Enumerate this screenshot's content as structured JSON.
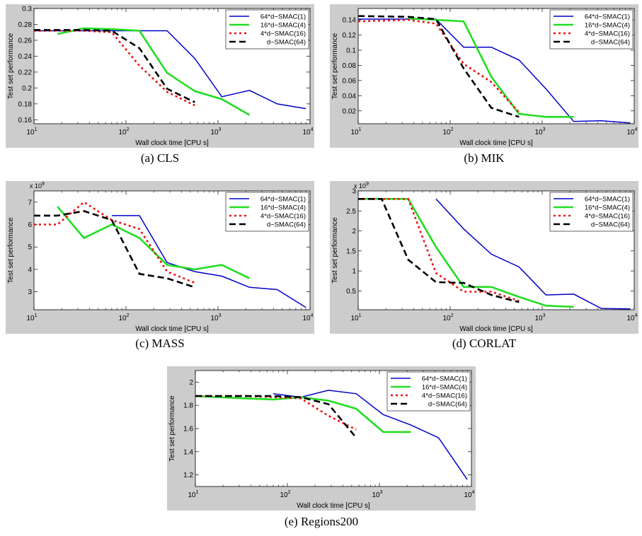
{
  "style": {
    "figure_background": "#cccccc",
    "plot_background": "#ffffff",
    "series_colors": [
      "#0000cc",
      "#22dd22",
      "#ee1111",
      "#000000"
    ],
    "series_dash": [
      "",
      "",
      "3,4",
      "9,5"
    ]
  },
  "chart_data": [
    {
      "type": "line",
      "caption": "(a)  CLS",
      "xlabel": "Wall clock time [CPU s]",
      "ylabel": "Test set performance",
      "xscale": "log",
      "xlim": [
        10,
        10000
      ],
      "xticks": [
        10,
        100,
        1000,
        10000
      ],
      "xtick_labels": [
        [
          "10",
          "1"
        ],
        [
          "10",
          "2"
        ],
        [
          "10",
          "3"
        ],
        [
          "10",
          "4"
        ]
      ],
      "ylim": [
        0.155,
        0.3
      ],
      "yticks": [
        0.16,
        0.18,
        0.2,
        0.22,
        0.24,
        0.26,
        0.28,
        0.3
      ],
      "ytick_labels": [
        "0.16",
        "0.18",
        "0.2",
        "0.22",
        "0.24",
        "0.26",
        "0.28",
        "0.3"
      ],
      "y_exponent": "",
      "legend_position": "top-right",
      "series": [
        {
          "name": "64*d−SMAC(1)",
          "x": [
            10,
            70,
            140,
            280,
            560,
            1100,
            2200,
            4400,
            9000
          ],
          "y": [
            0.272,
            0.272,
            0.272,
            0.272,
            0.237,
            0.189,
            0.197,
            0.18,
            0.174
          ]
        },
        {
          "name": "16*d−SMAC(4)",
          "x": [
            18,
            35,
            70,
            140,
            280,
            560,
            1100,
            2200
          ],
          "y": [
            0.268,
            0.275,
            0.274,
            0.272,
            0.219,
            0.196,
            0.186,
            0.166
          ]
        },
        {
          "name": "4*d−SMAC(16)",
          "x": [
            10,
            35,
            70,
            140,
            280,
            560
          ],
          "y": [
            0.272,
            0.272,
            0.27,
            0.228,
            0.195,
            0.178
          ]
        },
        {
          "name": "d−SMAC(64)",
          "x": [
            10,
            35,
            70,
            140,
            280,
            560
          ],
          "y": [
            0.273,
            0.273,
            0.272,
            0.25,
            0.199,
            0.182
          ]
        }
      ]
    },
    {
      "type": "line",
      "caption": "(b)  MIK",
      "xlabel": "Wall clock time [CPU s]",
      "ylabel": "Test set performance",
      "xscale": "log",
      "xlim": [
        10,
        10000
      ],
      "xticks": [
        10,
        100,
        1000,
        10000
      ],
      "xtick_labels": [
        [
          "10",
          "1"
        ],
        [
          "10",
          "2"
        ],
        [
          "10",
          "3"
        ],
        [
          "10",
          "4"
        ]
      ],
      "ylim": [
        0.003,
        0.155
      ],
      "yticks": [
        0.02,
        0.04,
        0.06,
        0.08,
        0.1,
        0.12,
        0.14
      ],
      "ytick_labels": [
        "0.02",
        "0.04",
        "0.06",
        "0.08",
        "0.1",
        "0.12",
        "0.14"
      ],
      "y_exponent": "",
      "legend_position": "top-right",
      "series": [
        {
          "name": "64*d−SMAC(1)",
          "x": [
            10,
            70,
            140,
            280,
            560,
            1100,
            2200,
            4400,
            9000
          ],
          "y": [
            0.141,
            0.141,
            0.104,
            0.104,
            0.087,
            0.049,
            0.006,
            0.007,
            0.004
          ]
        },
        {
          "name": "16*d−SMAC(4)",
          "x": [
            35,
            70,
            140,
            280,
            560,
            1100,
            2200
          ],
          "y": [
            0.142,
            0.14,
            0.138,
            0.065,
            0.016,
            0.012,
            0.012
          ]
        },
        {
          "name": "4*d−SMAC(16)",
          "x": [
            10,
            35,
            70,
            140,
            280,
            560
          ],
          "y": [
            0.138,
            0.14,
            0.135,
            0.082,
            0.058,
            0.018
          ]
        },
        {
          "name": "d−SMAC(64)",
          "x": [
            10,
            35,
            70,
            140,
            280,
            560
          ],
          "y": [
            0.145,
            0.144,
            0.141,
            0.076,
            0.024,
            0.012
          ]
        }
      ]
    },
    {
      "type": "line",
      "caption": "(c)  MASS",
      "xlabel": "Wall clock time [CPU s]",
      "ylabel": "Test set performance",
      "xscale": "log",
      "xlim": [
        10,
        10000
      ],
      "xticks": [
        10,
        100,
        1000,
        10000
      ],
      "xtick_labels": [
        [
          "10",
          "1"
        ],
        [
          "10",
          "2"
        ],
        [
          "10",
          "3"
        ],
        [
          "10",
          "4"
        ]
      ],
      "ylim": [
        2.2,
        7.5
      ],
      "yticks": [
        3,
        4,
        5,
        6,
        7
      ],
      "ytick_labels": [
        "3",
        "4",
        "5",
        "6",
        "7"
      ],
      "y_exponent": [
        "x 10",
        "9"
      ],
      "legend_position": "top-right",
      "series": [
        {
          "name": "64*d−SMAC(1)",
          "x": [
            70,
            140,
            280,
            560,
            1100,
            2200,
            4400,
            9000
          ],
          "y": [
            6.4,
            6.4,
            4.3,
            3.9,
            3.7,
            3.2,
            3.1,
            2.3
          ]
        },
        {
          "name": "16*d−SMAC(4)",
          "x": [
            18,
            35,
            70,
            140,
            280,
            560,
            1100,
            2200
          ],
          "y": [
            6.8,
            5.4,
            6.0,
            5.4,
            4.2,
            4.0,
            4.2,
            3.6
          ]
        },
        {
          "name": "4*d−SMAC(16)",
          "x": [
            10,
            18,
            35,
            70,
            140,
            280,
            560
          ],
          "y": [
            6.0,
            6.0,
            7.0,
            6.2,
            5.8,
            3.9,
            3.4
          ]
        },
        {
          "name": "d−SMAC(64)",
          "x": [
            10,
            18,
            35,
            70,
            140,
            280,
            560
          ],
          "y": [
            6.4,
            6.4,
            6.6,
            6.2,
            3.8,
            3.6,
            3.2
          ]
        }
      ]
    },
    {
      "type": "line",
      "caption": "(d)  CORLAT",
      "xlabel": "Wall clock time [CPU s]",
      "ylabel": "Test set performance",
      "xscale": "log",
      "xlim": [
        10,
        10000
      ],
      "xticks": [
        10,
        100,
        1000,
        10000
      ],
      "xtick_labels": [
        [
          "10",
          "1"
        ],
        [
          "10",
          "2"
        ],
        [
          "10",
          "3"
        ],
        [
          "10",
          "4"
        ]
      ],
      "ylim": [
        0.03,
        3.0
      ],
      "yticks": [
        0.5,
        1,
        1.5,
        2,
        2.5,
        3
      ],
      "ytick_labels": [
        "0.5",
        "1",
        "1.5",
        "2",
        "2.5",
        "3"
      ],
      "y_exponent": [
        "x 10",
        "9"
      ],
      "legend_position": "top-right",
      "series": [
        {
          "name": "64*d−SMAC(1)",
          "x": [
            70,
            140,
            280,
            560,
            1100,
            2200,
            4400,
            9000
          ],
          "y": [
            2.8,
            2.05,
            1.42,
            1.1,
            0.4,
            0.42,
            0.06,
            0.05
          ]
        },
        {
          "name": "16*d−SMAC(4)",
          "x": [
            10,
            35,
            70,
            140,
            280,
            560,
            1100,
            2200
          ],
          "y": [
            2.8,
            2.8,
            1.6,
            0.6,
            0.6,
            0.35,
            0.13,
            0.1
          ]
        },
        {
          "name": "4*d−SMAC(16)",
          "x": [
            10,
            35,
            70,
            140,
            280,
            560
          ],
          "y": [
            2.8,
            2.8,
            0.95,
            0.48,
            0.48,
            0.25
          ]
        },
        {
          "name": "d−SMAC(64)",
          "x": [
            10,
            18,
            35,
            70,
            140,
            280,
            560
          ],
          "y": [
            2.8,
            2.8,
            1.28,
            0.72,
            0.7,
            0.4,
            0.22
          ]
        }
      ]
    },
    {
      "type": "line",
      "caption": "(e)  Regions200",
      "xlabel": "Wall clock time [CPU s]",
      "ylabel": "Test set performance",
      "xscale": "log",
      "xlim": [
        10,
        10000
      ],
      "xticks": [
        10,
        100,
        1000,
        10000
      ],
      "xtick_labels": [
        [
          "10",
          "1"
        ],
        [
          "10",
          "2"
        ],
        [
          "10",
          "3"
        ],
        [
          "10",
          "4"
        ]
      ],
      "ylim": [
        1.1,
        2.1
      ],
      "yticks": [
        1.2,
        1.4,
        1.6,
        1.8,
        2
      ],
      "ytick_labels": [
        "1.2",
        "1.4",
        "1.6",
        "1.8",
        "2"
      ],
      "y_exponent": "",
      "legend_position": "top-right",
      "series": [
        {
          "name": "64*d−SMAC(1)",
          "x": [
            70,
            140,
            280,
            560,
            1100,
            2200,
            4400,
            9000
          ],
          "y": [
            1.9,
            1.87,
            1.93,
            1.9,
            1.72,
            1.63,
            1.52,
            1.16
          ]
        },
        {
          "name": "16*d−SMAC(4)",
          "x": [
            10,
            35,
            70,
            140,
            280,
            560,
            1100,
            2200
          ],
          "y": [
            1.88,
            1.86,
            1.85,
            1.87,
            1.84,
            1.77,
            1.57,
            1.57
          ]
        },
        {
          "name": "4*d−SMAC(16)",
          "x": [
            10,
            35,
            70,
            140,
            280,
            560
          ],
          "y": [
            1.88,
            1.88,
            1.87,
            1.86,
            1.71,
            1.59
          ]
        },
        {
          "name": "d−SMAC(64)",
          "x": [
            10,
            35,
            70,
            140,
            280,
            560
          ],
          "y": [
            1.88,
            1.88,
            1.88,
            1.87,
            1.81,
            1.52
          ]
        }
      ]
    }
  ]
}
